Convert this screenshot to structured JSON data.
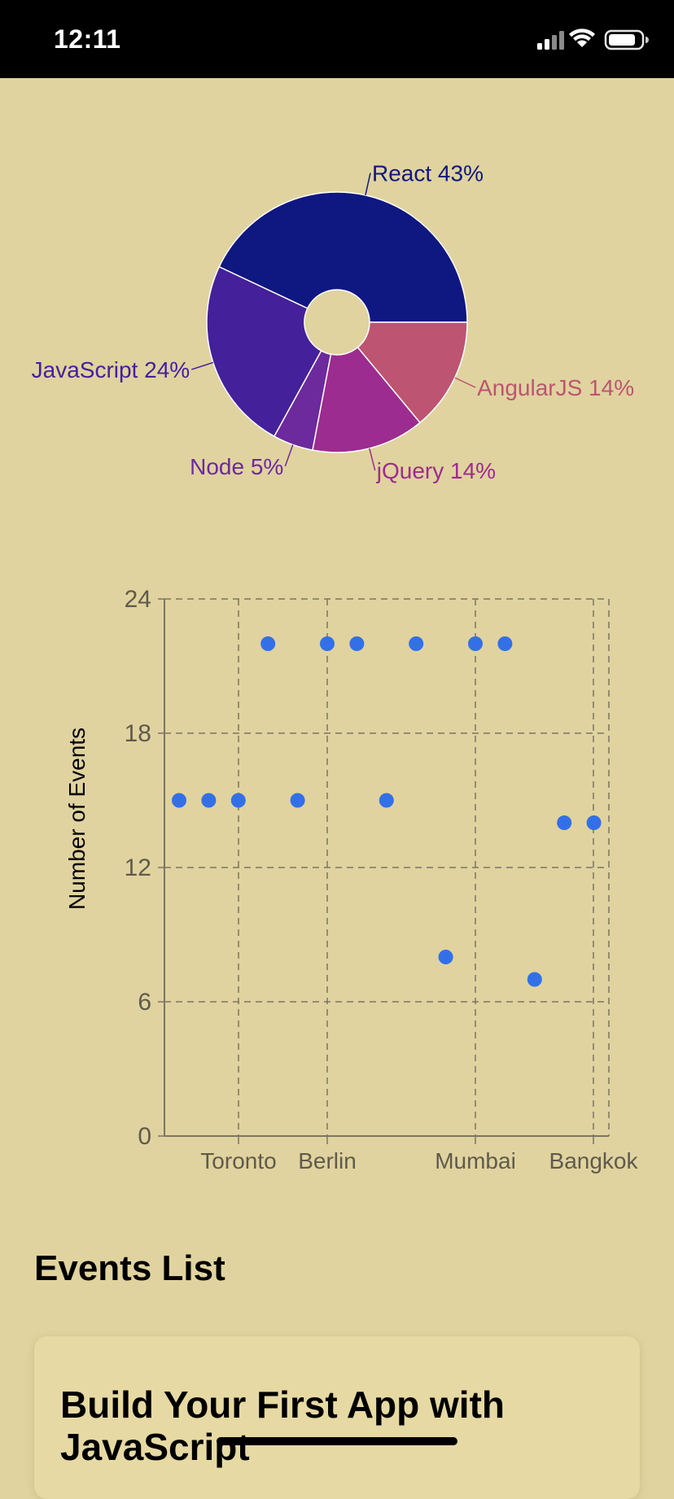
{
  "status_bar": {
    "time": "12:11"
  },
  "pie_chart": {
    "type": "pie",
    "slices": [
      {
        "label": "React 43%",
        "value": 43,
        "color": "#0f1781"
      },
      {
        "label": "AngularJS 14%",
        "value": 14,
        "color": "#bd5472"
      },
      {
        "label": "jQuery 14%",
        "value": 14,
        "color": "#9c2c8f"
      },
      {
        "label": "Node 5%",
        "value": 5,
        "color": "#6c2a9c"
      },
      {
        "label": "JavaScript 24%",
        "value": 24,
        "color": "#44209a"
      }
    ]
  },
  "chart_data": {
    "type": "scatter",
    "ylabel": "Number of Events",
    "ylim": [
      0,
      24
    ],
    "y_ticks": [
      "0",
      "6",
      "12",
      "18",
      "24"
    ],
    "x_tick_labels": [
      "Toronto",
      "Berlin",
      "Mumbai",
      "Bangkok"
    ],
    "grid": true,
    "point_color": "#3370e8",
    "points": [
      {
        "y": 15
      },
      {
        "y": 15
      },
      {
        "y": 15
      },
      {
        "y": 22
      },
      {
        "y": 15
      },
      {
        "y": 22
      },
      {
        "y": 22
      },
      {
        "y": 15
      },
      {
        "y": 22
      },
      {
        "y": 8
      },
      {
        "y": 22
      },
      {
        "y": 22
      },
      {
        "y": 7
      },
      {
        "y": 14
      },
      {
        "y": 14
      }
    ]
  },
  "events": {
    "title": "Events List",
    "items": [
      {
        "title": "Build Your First App with JavaScript"
      }
    ]
  }
}
